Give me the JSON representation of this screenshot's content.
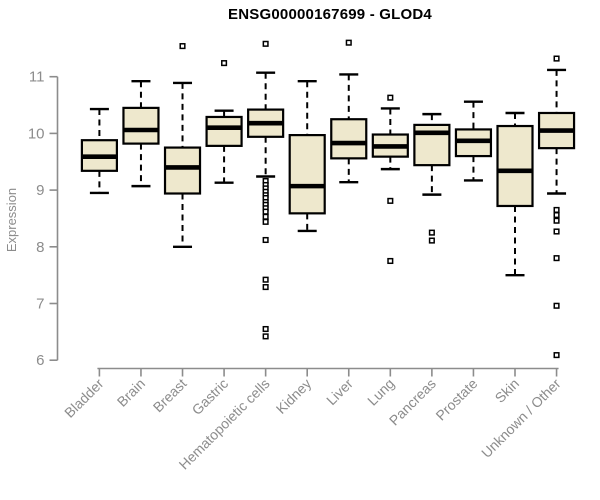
{
  "chart_data": {
    "type": "boxplot",
    "title": "ENSG00000167699 - GLOD4",
    "xlabel": "",
    "ylabel": "Expression",
    "ylim": [
      6,
      11
    ],
    "yticks": [
      6,
      7,
      8,
      9,
      10,
      11
    ],
    "grid": false,
    "legend": "none",
    "outlier_marker": "open-square",
    "colors": {
      "box_fill": "#EEE8CD",
      "box_stroke": "#000000",
      "axis_color": "#8C8C8C",
      "title_color": "#000000"
    },
    "categories": [
      "Bladder",
      "Brain",
      "Breast",
      "Gastric",
      "Hematopoietic cells",
      "Kidney",
      "Liver",
      "Lung",
      "Pancreas",
      "Prostate",
      "Skin",
      "Unknown / Other"
    ],
    "series": [
      {
        "name": "Bladder",
        "low": 8.95,
        "q1": 9.34,
        "median": 9.59,
        "q3": 9.88,
        "high": 10.43,
        "outliers": []
      },
      {
        "name": "Brain",
        "low": 9.07,
        "q1": 9.82,
        "median": 10.06,
        "q3": 10.45,
        "high": 10.92,
        "outliers": []
      },
      {
        "name": "Breast",
        "low": 8.0,
        "q1": 8.94,
        "median": 9.4,
        "q3": 9.75,
        "high": 10.89,
        "outliers": [
          11.54
        ]
      },
      {
        "name": "Gastric",
        "low": 9.13,
        "q1": 9.78,
        "median": 10.1,
        "q3": 10.29,
        "high": 10.4,
        "outliers": [
          11.24
        ]
      },
      {
        "name": "Hematopoietic cells",
        "low": 9.24,
        "q1": 9.94,
        "median": 10.18,
        "q3": 10.42,
        "high": 11.07,
        "outliers": [
          11.58,
          9.16,
          9.09,
          9.03,
          8.97,
          8.91,
          8.86,
          8.79,
          8.74,
          8.68,
          8.62,
          8.53,
          8.44,
          8.12,
          7.42,
          7.29,
          6.55,
          6.42
        ]
      },
      {
        "name": "Kidney",
        "low": 8.28,
        "q1": 8.59,
        "median": 9.07,
        "q3": 9.97,
        "high": 10.92,
        "outliers": []
      },
      {
        "name": "Liver",
        "low": 9.14,
        "q1": 9.56,
        "median": 9.83,
        "q3": 10.25,
        "high": 11.04,
        "outliers": [
          11.6
        ]
      },
      {
        "name": "Lung",
        "low": 9.37,
        "q1": 9.59,
        "median": 9.77,
        "q3": 9.98,
        "high": 10.44,
        "outliers": [
          10.63,
          8.81,
          7.75
        ]
      },
      {
        "name": "Pancreas",
        "low": 8.92,
        "q1": 9.44,
        "median": 10.01,
        "q3": 10.15,
        "high": 10.34,
        "outliers": [
          8.25,
          8.11
        ]
      },
      {
        "name": "Prostate",
        "low": 9.17,
        "q1": 9.6,
        "median": 9.87,
        "q3": 10.07,
        "high": 10.56,
        "outliers": []
      },
      {
        "name": "Skin",
        "low": 7.5,
        "q1": 8.72,
        "median": 9.34,
        "q3": 10.13,
        "high": 10.36,
        "outliers": []
      },
      {
        "name": "Unknown / Other",
        "low": 8.94,
        "q1": 9.74,
        "median": 10.05,
        "q3": 10.36,
        "high": 11.12,
        "outliers": [
          11.32,
          8.65,
          8.56,
          8.46,
          8.27,
          7.8,
          6.96,
          6.09
        ]
      }
    ]
  }
}
